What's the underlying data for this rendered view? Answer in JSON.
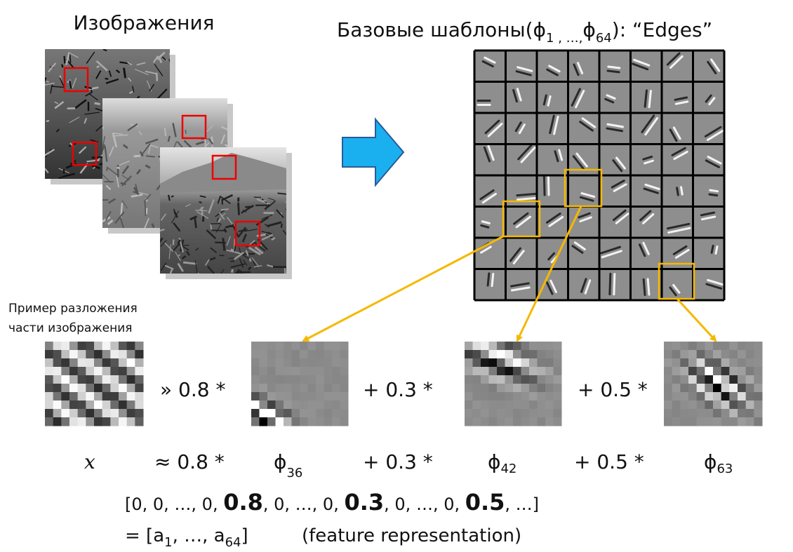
{
  "images_label": "Изображения",
  "bases_title": {
    "prefix": "Базовые шаблоны(",
    "phi_first": "ϕ",
    "sub_first": "1 , …,",
    "phi_last": "ϕ",
    "sub_last": "64",
    "suffix": "):  “Edges”"
  },
  "example_label": [
    "Пример разложения",
    "части изображения"
  ],
  "approx_row": {
    "op1": "» 0.8 *",
    "op2": "+ 0.3 *",
    "op3": "+ 0.5 *"
  },
  "symbol_row": {
    "x": "x",
    "op1": "≈ 0.8 *",
    "phi1": "ϕ",
    "sub1": "36",
    "op2": "+ 0.3 *",
    "phi2": "ϕ",
    "sub2": "42",
    "op3": "+ 0.5 *",
    "phi3": "ϕ",
    "sub3": "63"
  },
  "vector": [
    {
      "text": "[0, 0, …, 0, ",
      "bold": false
    },
    {
      "text": "0.8",
      "bold": true
    },
    {
      "text": ", 0, …, 0, ",
      "bold": false
    },
    {
      "text": "0.3",
      "bold": true
    },
    {
      "text": ", 0, …, 0, ",
      "bold": false
    },
    {
      "text": "0.5",
      "bold": true
    },
    {
      "text": ", …]",
      "bold": false
    }
  ],
  "representation": {
    "prefix": "= [a",
    "sub_first": "1",
    "middle": ", …, a",
    "sub_last": "64",
    "close": "]",
    "note": "(feature representation)"
  }
}
